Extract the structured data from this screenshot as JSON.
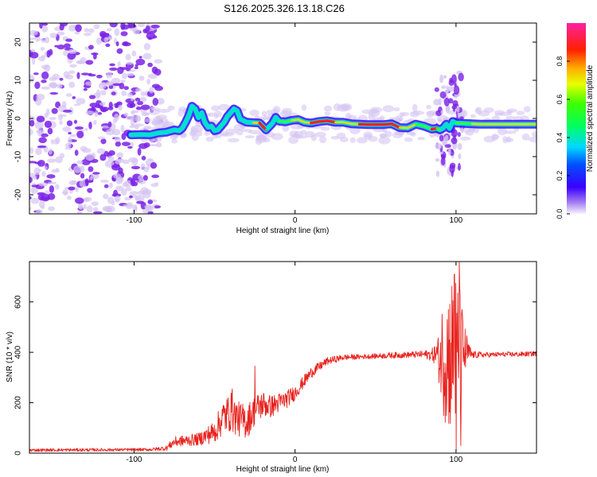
{
  "title": "S126.2025.326.13.18.C26",
  "colors": {
    "snr_line": "#e8231e",
    "ridge_low": "#1a0aff",
    "ridge_mid": "#00e0d0",
    "ridge_high": "#ff2020",
    "noise": "#7a22e6",
    "noise_light": "#d6c4f2"
  },
  "chart_data": [
    {
      "type": "heatmap",
      "name": "spectrogram",
      "title": "S126.2025.326.13.18.C26",
      "xlabel": "Height of straight line (km)",
      "ylabel": "Frequency (Hz)",
      "xlim": [
        -165,
        150
      ],
      "ylim": [
        -25,
        25
      ],
      "xticks": [
        -100,
        0,
        100
      ],
      "xtick_labels": [
        "-100",
        "0",
        "100"
      ],
      "yticks": [
        -20,
        -10,
        0,
        10,
        20
      ],
      "ytick_labels": [
        "-20",
        "-10",
        "0",
        "10",
        "20"
      ],
      "noise_region_x": [
        -165,
        -85
      ],
      "ridge": {
        "x": [
          -102,
          -95,
          -90,
          -85,
          -80,
          -75,
          -72,
          -70,
          -68,
          -66,
          -64,
          -62,
          -60,
          -58,
          -56,
          -54,
          -52,
          -50,
          -48,
          -46,
          -44,
          -42,
          -40,
          -38,
          -36,
          -34,
          -32,
          -30,
          -26,
          -22,
          -18,
          -14,
          -12,
          -10,
          -6,
          -2,
          2,
          6,
          10,
          15,
          20,
          25,
          30,
          35,
          40,
          45,
          50,
          55,
          60,
          65,
          70,
          75,
          80,
          85,
          88,
          90,
          92,
          94,
          96,
          98,
          100,
          105,
          110,
          115,
          120,
          125,
          130,
          135,
          140,
          145,
          150
        ],
        "freq": [
          -4.3,
          -4.2,
          -4.3,
          -3.8,
          -3.6,
          -3.0,
          -3.2,
          -2.5,
          -1.0,
          0.8,
          3.2,
          2.5,
          0.2,
          1.5,
          -1.0,
          -2.3,
          -2.0,
          -3.2,
          -3.0,
          -2.0,
          -1.0,
          0.5,
          1.5,
          2.5,
          2.0,
          -0.2,
          -0.6,
          -1.0,
          -1.1,
          -1.2,
          -3.0,
          -1.2,
          0.3,
          -0.7,
          -0.9,
          -0.5,
          -0.3,
          -1.0,
          -1.2,
          -0.8,
          -0.6,
          -1.0,
          -1.0,
          -1.4,
          -1.5,
          -1.6,
          -1.6,
          -1.6,
          -1.4,
          -2.4,
          -2.5,
          -1.5,
          -2.0,
          -2.8,
          -2.6,
          -3.0,
          -2.5,
          -1.5,
          -2.6,
          -0.8,
          -1.2,
          -1.3,
          -1.4,
          -1.5,
          -1.5,
          -1.5,
          -1.5,
          -1.5,
          -1.5,
          -1.5,
          -1.5
        ],
        "amplitude": [
          0.45,
          0.45,
          0.45,
          0.4,
          0.4,
          0.4,
          0.45,
          0.4,
          0.45,
          0.45,
          0.4,
          0.4,
          0.35,
          0.3,
          0.35,
          0.4,
          0.35,
          0.3,
          0.3,
          0.35,
          0.35,
          0.35,
          0.4,
          0.35,
          0.35,
          0.4,
          0.45,
          0.6,
          0.85,
          0.9,
          0.6,
          0.5,
          0.6,
          0.7,
          0.75,
          0.8,
          0.85,
          0.85,
          0.9,
          0.9,
          0.9,
          0.8,
          0.8,
          0.85,
          0.9,
          0.95,
          0.95,
          0.95,
          0.9,
          0.8,
          0.85,
          0.75,
          0.7,
          0.9,
          0.7,
          0.5,
          0.5,
          0.45,
          0.5,
          0.6,
          0.7,
          0.75,
          0.8,
          0.8,
          0.8,
          0.8,
          0.8,
          0.8,
          0.8,
          0.8,
          0.8
        ]
      },
      "colorbar": {
        "label": "Normalized spectral amplitude",
        "range": [
          0,
          1
        ],
        "ticks": [
          0.0,
          0.2,
          0.4,
          0.6,
          0.8
        ],
        "tick_labels": [
          "0.0",
          "0.2",
          "0.4",
          "0.6",
          "0.8"
        ]
      }
    },
    {
      "type": "line",
      "name": "snr",
      "xlabel": "Height of straight line (km)",
      "ylabel": "SNR (10 * v/v)",
      "xlim": [
        -165,
        150
      ],
      "ylim": [
        0,
        760
      ],
      "xticks": [
        -100,
        0,
        100
      ],
      "xtick_labels": [
        "-100",
        "0",
        "100"
      ],
      "yticks": [
        0,
        200,
        400,
        600
      ],
      "ytick_labels": [
        "0",
        "200",
        "400",
        "600"
      ],
      "envelope": {
        "x": [
          -165,
          -90,
          -80,
          -75,
          -60,
          -50,
          -45,
          -40,
          -35,
          -30,
          -25,
          -20,
          -15,
          -10,
          -5,
          0,
          5,
          10,
          20,
          30,
          40,
          50,
          60,
          70,
          80,
          85,
          88,
          90,
          92,
          95,
          98,
          100,
          102,
          105,
          108,
          110,
          120,
          130,
          140,
          150
        ],
        "y": [
          12,
          14,
          20,
          45,
          55,
          85,
          140,
          165,
          135,
          125,
          170,
          195,
          185,
          200,
          215,
          240,
          280,
          320,
          365,
          380,
          382,
          385,
          388,
          390,
          392,
          390,
          395,
          370,
          400,
          380,
          400,
          390,
          395,
          400,
          398,
          390,
          390,
          392,
          392,
          395
        ],
        "spread": [
          6,
          6,
          10,
          20,
          25,
          45,
          70,
          80,
          70,
          70,
          60,
          55,
          45,
          40,
          35,
          30,
          25,
          22,
          15,
          12,
          10,
          10,
          12,
          12,
          15,
          25,
          50,
          120,
          250,
          300,
          320,
          330,
          300,
          120,
          40,
          15,
          10,
          10,
          10,
          10
        ]
      },
      "peaks": [
        {
          "x": 102,
          "y": 760
        },
        {
          "x": 99,
          "y": 710
        },
        {
          "x": 100,
          "y": 10
        },
        {
          "x": 103,
          "y": 30
        },
        {
          "x": -25,
          "y": 345
        },
        {
          "x": -39,
          "y": 255
        }
      ]
    }
  ]
}
